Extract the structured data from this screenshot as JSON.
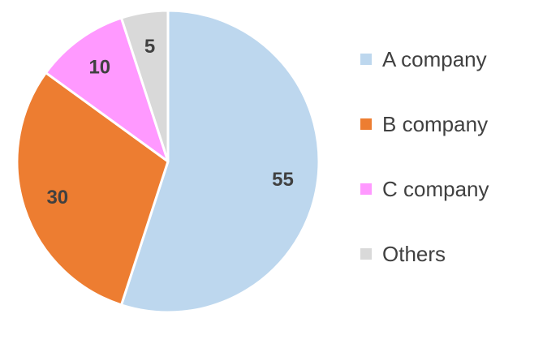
{
  "chart_data": {
    "type": "pie",
    "title": "",
    "categories": [
      "A company",
      "B company",
      "C company",
      "Others"
    ],
    "values": [
      55,
      30,
      10,
      5
    ],
    "colors": [
      "#bdd7ee",
      "#ed7d31",
      "#ff99ff",
      "#d9d9d9"
    ],
    "data_labels": [
      "55",
      "30",
      "10",
      "5"
    ],
    "start_angle_deg": 0,
    "direction": "clockwise",
    "legend_position": "right"
  }
}
